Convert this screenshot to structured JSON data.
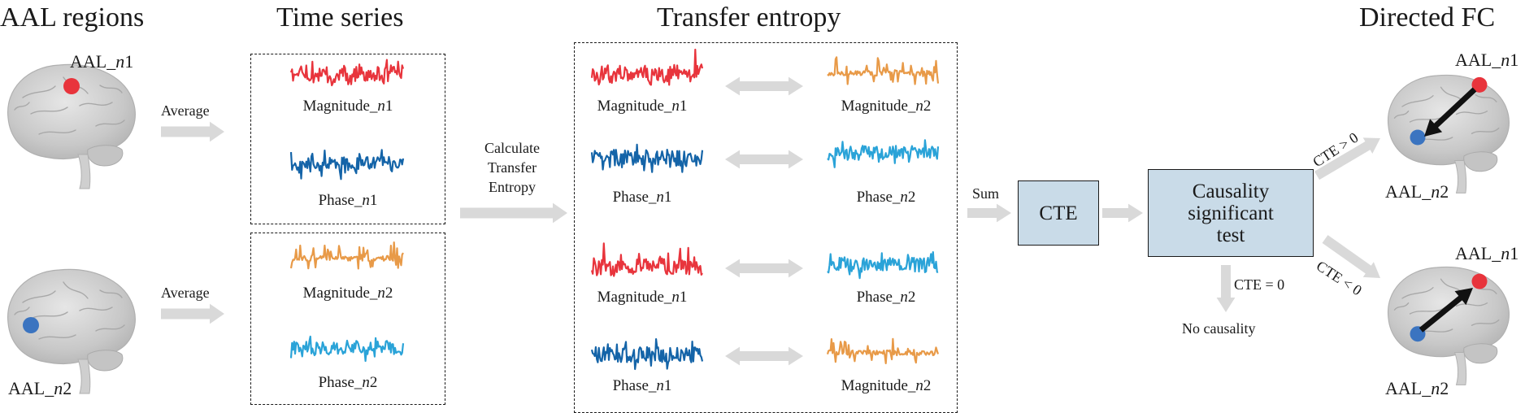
{
  "headers": {
    "aal_regions": "AAL regions",
    "time_series": "Time series",
    "transfer_entropy": "Transfer entropy",
    "directed_fc": "Directed FC"
  },
  "regions": {
    "n1": "AAL_n1",
    "n2": "AAL_n2"
  },
  "arrow_labels": {
    "average": "Average",
    "calculate": [
      "Calculate",
      "Transfer",
      "Entropy"
    ],
    "sum": "Sum",
    "cte_gt": "CTE > 0",
    "cte_lt": "CTE < 0",
    "cte_eq": "CTE = 0"
  },
  "signals": {
    "magnitude_n1": "Magnitude_n1",
    "phase_n1": "Phase_n1",
    "magnitude_n2": "Magnitude_n2",
    "phase_n2": "Phase_n2"
  },
  "boxes": {
    "cte": "CTE",
    "test": [
      "Causality",
      "significant",
      "test"
    ]
  },
  "no_causality": "No causality",
  "colors": {
    "magnitude_n1": "#e8343c",
    "phase_n1": "#1464a8",
    "magnitude_n2": "#e89a48",
    "phase_n2": "#2aa3d8",
    "region_n1_dot": "#e8343c",
    "region_n2_dot": "#3b74c0",
    "box_fill": "#c9dbe8",
    "arrow_gray": "#d9d9d9"
  }
}
